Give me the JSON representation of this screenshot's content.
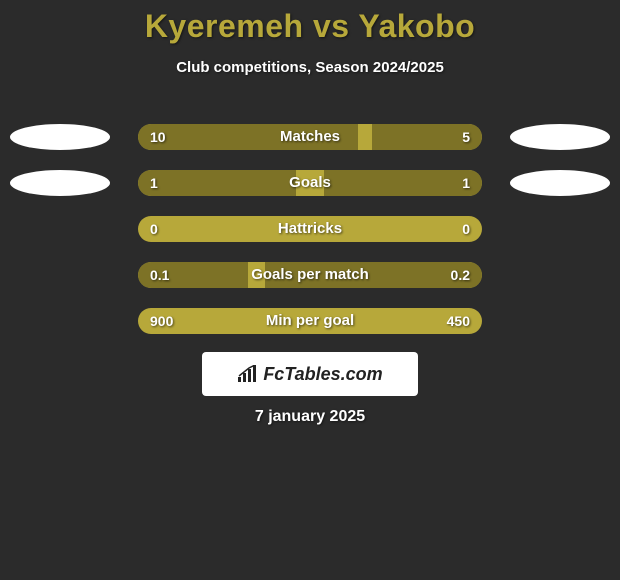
{
  "title": "Kyeremeh vs Yakobo",
  "subtitle": "Club competitions, Season 2024/2025",
  "date": "7 january 2025",
  "logo_text": "FcTables.com",
  "colors": {
    "background": "#2b2b2b",
    "accent": "#b7a83a",
    "bar_fill": "#7d7226",
    "text_light": "#ffffff",
    "ellipse": "#ffffff",
    "logo_bg": "#ffffff",
    "logo_text": "#222222"
  },
  "rows": [
    {
      "label": "Matches",
      "left_value": "10",
      "right_value": "5",
      "left_fill_pct": 64,
      "right_fill_pct": 32,
      "show_left_ellipse": true,
      "show_right_ellipse": true
    },
    {
      "label": "Goals",
      "left_value": "1",
      "right_value": "1",
      "left_fill_pct": 46,
      "right_fill_pct": 46,
      "show_left_ellipse": true,
      "show_right_ellipse": true
    },
    {
      "label": "Hattricks",
      "left_value": "0",
      "right_value": "0",
      "left_fill_pct": 0,
      "right_fill_pct": 0,
      "show_left_ellipse": false,
      "show_right_ellipse": false
    },
    {
      "label": "Goals per match",
      "left_value": "0.1",
      "right_value": "0.2",
      "left_fill_pct": 32,
      "right_fill_pct": 63,
      "show_left_ellipse": false,
      "show_right_ellipse": false
    },
    {
      "label": "Min per goal",
      "left_value": "900",
      "right_value": "450",
      "left_fill_pct": 0,
      "right_fill_pct": 0,
      "show_left_ellipse": false,
      "show_right_ellipse": false
    }
  ]
}
